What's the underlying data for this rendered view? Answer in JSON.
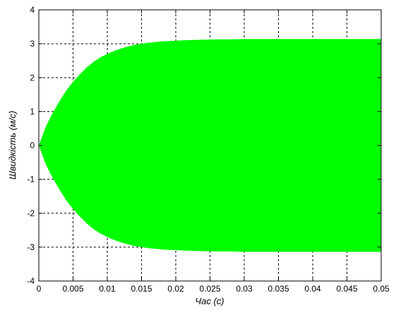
{
  "chart_data": {
    "type": "area",
    "title": "",
    "xlabel": "Час (с)",
    "ylabel": "Швидкість (м/с)",
    "xlim": [
      0,
      0.05
    ],
    "ylim": [
      -4,
      4
    ],
    "grid": true,
    "x_ticks": [
      0,
      0.005,
      0.01,
      0.015,
      0.02,
      0.025,
      0.03,
      0.035,
      0.04,
      0.045,
      0.05
    ],
    "x_tick_labels": [
      "0",
      "0.005",
      "0.01",
      "0.015",
      "0.02",
      "0.025",
      "0.03",
      "0.035",
      "0.04",
      "0.045",
      "0.05"
    ],
    "y_ticks": [
      -4,
      -3,
      -2,
      -1,
      0,
      1,
      2,
      3,
      4
    ],
    "y_tick_labels": [
      "-4",
      "-3",
      "-2",
      "-1",
      "0",
      "1",
      "2",
      "3",
      "4"
    ],
    "fill_color": "#00ff00",
    "series": [
      {
        "x": [
          0,
          0.001,
          0.002,
          0.003,
          0.004,
          0.005,
          0.006,
          0.007,
          0.008,
          0.009,
          0.01,
          0.011,
          0.012,
          0.013,
          0.014,
          0.015,
          0.016,
          0.017,
          0.018,
          0.019,
          0.02,
          0.022,
          0.024,
          0.026,
          0.028,
          0.03,
          0.035,
          0.04,
          0.045,
          0.05
        ],
        "upper": [
          0,
          0.55,
          0.95,
          1.3,
          1.62,
          1.88,
          2.1,
          2.3,
          2.47,
          2.6,
          2.7,
          2.79,
          2.86,
          2.92,
          2.97,
          3.0,
          3.03,
          3.05,
          3.07,
          3.08,
          3.09,
          3.11,
          3.12,
          3.13,
          3.13,
          3.14,
          3.14,
          3.14,
          3.14,
          3.14
        ],
        "lower": [
          0,
          -0.55,
          -0.95,
          -1.3,
          -1.62,
          -1.88,
          -2.1,
          -2.3,
          -2.47,
          -2.6,
          -2.7,
          -2.79,
          -2.86,
          -2.92,
          -2.97,
          -3.0,
          -3.03,
          -3.05,
          -3.07,
          -3.08,
          -3.09,
          -3.11,
          -3.12,
          -3.13,
          -3.13,
          -3.14,
          -3.14,
          -3.14,
          -3.14,
          -3.14
        ]
      }
    ]
  }
}
